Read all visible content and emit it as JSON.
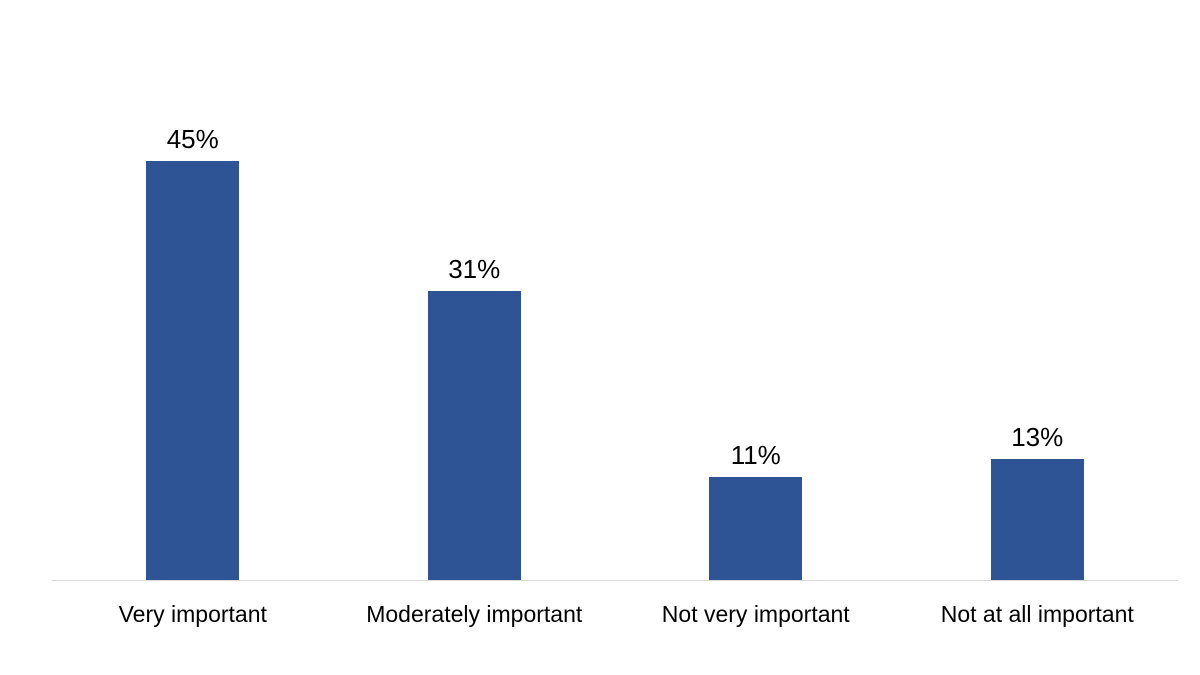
{
  "chart_data": {
    "type": "bar",
    "title": "",
    "xlabel": "",
    "ylabel": "",
    "categories": [
      "Very important",
      "Moderately important",
      "Not very important",
      "Not at all important"
    ],
    "values": [
      45,
      31,
      11,
      13
    ],
    "data_labels": [
      "45%",
      "31%",
      "11%",
      "13%"
    ],
    "ylim": [
      0,
      51.5
    ],
    "grid": false,
    "legend": false,
    "bar_color": "#2F5496",
    "axis_color": "#D9D9D9",
    "label_color": "#000000",
    "background_color": "#FFFFFF"
  }
}
